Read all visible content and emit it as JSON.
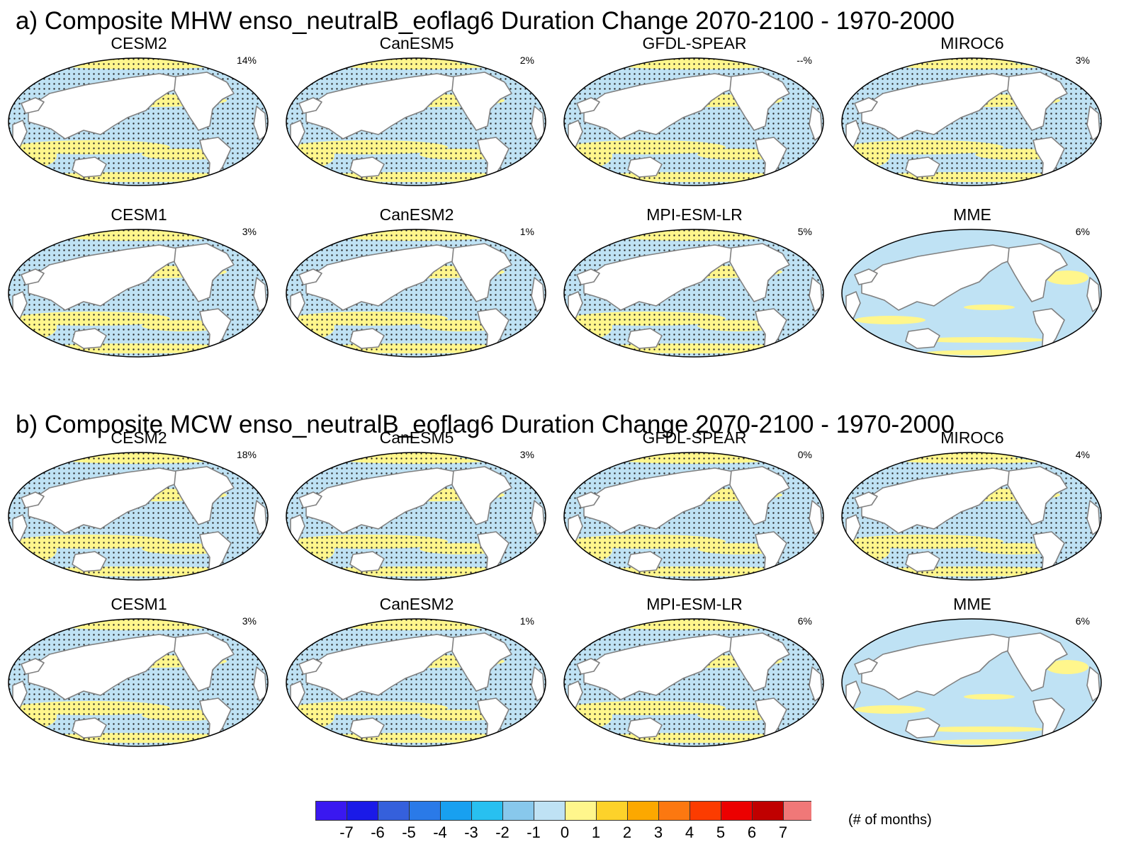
{
  "chart_data": [
    {
      "type": "heatmap",
      "title": "a) Composite MHW enso_neutralB_eoflag6 Duration Change 2070-2100 - 1970-2000",
      "panels": [
        {
          "model": "CESM2",
          "percent": "14%",
          "stippled": true
        },
        {
          "model": "CanESM5",
          "percent": "2%",
          "stippled": true
        },
        {
          "model": "GFDL-SPEAR",
          "percent": "--%",
          "stippled": true
        },
        {
          "model": "MIROC6",
          "percent": "3%",
          "stippled": true
        },
        {
          "model": "CESM1",
          "percent": "3%",
          "stippled": true
        },
        {
          "model": "CanESM2",
          "percent": "1%",
          "stippled": true
        },
        {
          "model": "MPI-ESM-LR",
          "percent": "5%",
          "stippled": true
        },
        {
          "model": "MME",
          "percent": "6%",
          "stippled": false
        }
      ]
    },
    {
      "type": "heatmap",
      "title": "b) Composite MCW enso_neutralB_eoflag6 Duration Change 2070-2100 - 1970-2000",
      "panels": [
        {
          "model": "CESM2",
          "percent": "18%",
          "stippled": true
        },
        {
          "model": "CanESM5",
          "percent": "3%",
          "stippled": true
        },
        {
          "model": "GFDL-SPEAR",
          "percent": "0%",
          "stippled": true
        },
        {
          "model": "MIROC6",
          "percent": "4%",
          "stippled": true
        },
        {
          "model": "CESM1",
          "percent": "3%",
          "stippled": true
        },
        {
          "model": "CanESM2",
          "percent": "1%",
          "stippled": true
        },
        {
          "model": "MPI-ESM-LR",
          "percent": "6%",
          "stippled": true
        },
        {
          "model": "MME",
          "percent": "6%",
          "stippled": false
        }
      ]
    }
  ],
  "colorbar": {
    "labels": [
      "-7",
      "-6",
      "-5",
      "-4",
      "-3",
      "-2",
      "-1",
      "0",
      "1",
      "2",
      "3",
      "4",
      "5",
      "6",
      "7"
    ],
    "colors": [
      "#3a18f0",
      "#1a1ae8",
      "#3560dc",
      "#2a7ae8",
      "#18a0f0",
      "#28c0f0",
      "#88c8ec",
      "#bfe2f4",
      "#fff68c",
      "#fdd22a",
      "#fca800",
      "#fc7810",
      "#fc3c00",
      "#ec0000",
      "#c00000",
      "#f07878"
    ],
    "units": "(# of months)"
  },
  "colors": {
    "land": "#ffffff",
    "coast": "#808080",
    "ocean_neg": "#bfe2f4",
    "ocean_pos": "#fff68c",
    "ocean_strong_neg": "#88c8ec",
    "stipple": "#2a2a2a"
  }
}
